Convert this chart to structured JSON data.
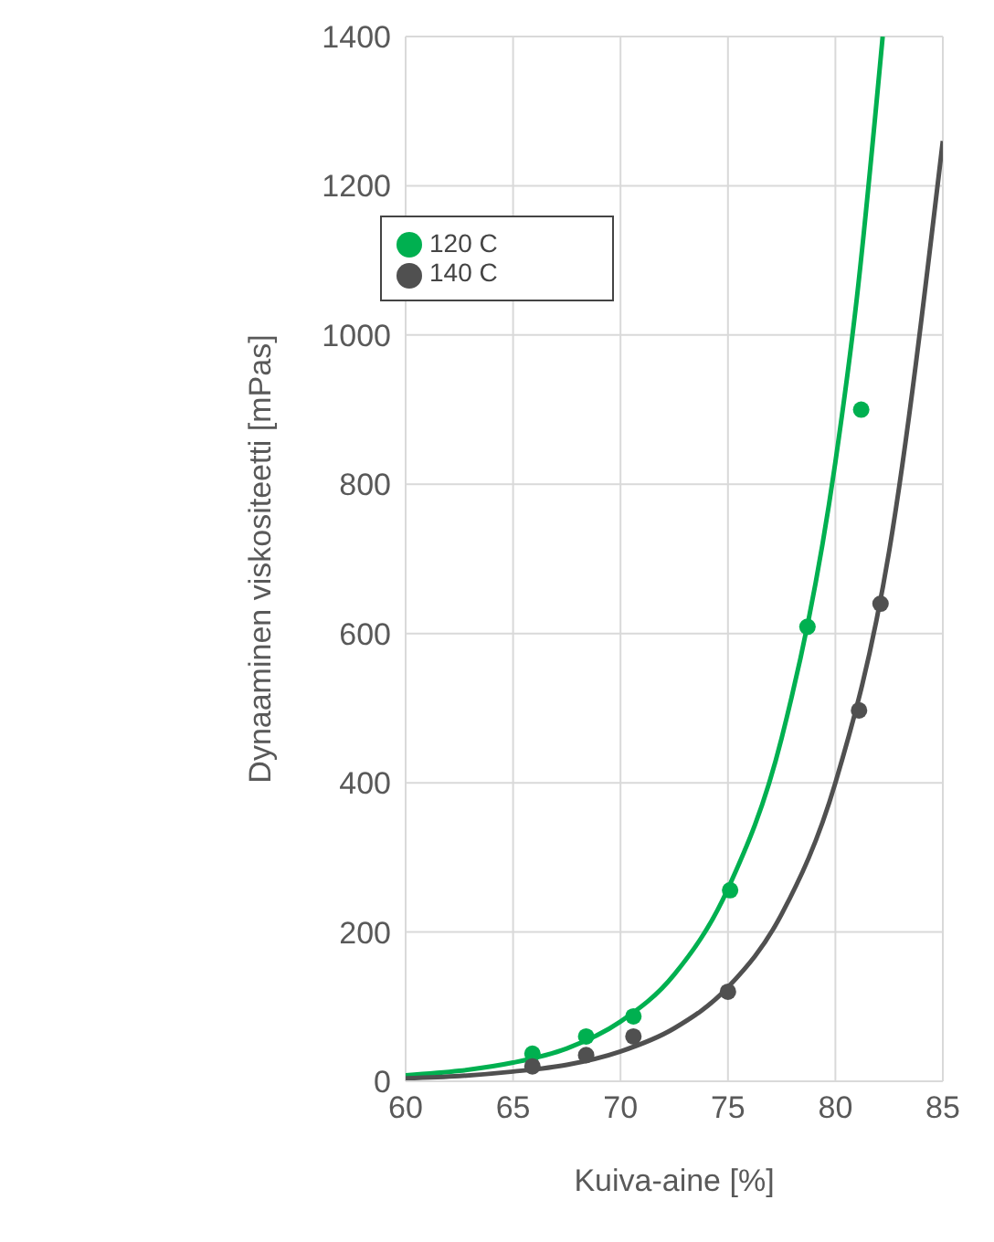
{
  "chart_data": {
    "type": "scatter",
    "xlabel": "Kuiva-aine [%]",
    "ylabel": "Dynaaminen viskositeetti [mPas]",
    "xlim": [
      60,
      85
    ],
    "xticks": [
      60,
      65,
      70,
      75,
      80,
      85
    ],
    "ylim": [
      0,
      1400
    ],
    "yticks": [
      0,
      200,
      400,
      600,
      800,
      1000,
      1200,
      1400
    ],
    "grid": true,
    "legend": "top left",
    "series": [
      {
        "name": "120 C",
        "marker": "circle",
        "color": "#00b050",
        "x": [
          65.9,
          68.4,
          70.6,
          75.1,
          78.7,
          81.2
        ],
        "values": [
          37,
          60,
          87,
          256,
          609,
          900
        ]
      },
      {
        "name": "140 C",
        "marker": "circle",
        "color": "#505050",
        "x": [
          65.9,
          68.4,
          70.6,
          75,
          81.1,
          82.1
        ],
        "values": [
          20,
          35,
          60,
          120,
          497,
          640
        ]
      },
      {
        "type": "line",
        "marker": "none",
        "color": "#00b050",
        "x": [
          60,
          62.5,
          65,
          67.5,
          70,
          72.5,
          75,
          77.5,
          80,
          81,
          82.2
        ],
        "values": [
          8,
          14,
          25,
          44,
          80,
          143,
          258,
          460,
          830,
          1050,
          1400
        ]
      },
      {
        "type": "line",
        "marker": "none",
        "color": "#505050",
        "x": [
          60,
          62.5,
          65,
          67.5,
          70,
          72.5,
          75,
          77.5,
          80,
          82.5,
          85
        ],
        "values": [
          4,
          7,
          13,
          22,
          40,
          71,
          126,
          224,
          400,
          710,
          1260
        ]
      }
    ]
  }
}
